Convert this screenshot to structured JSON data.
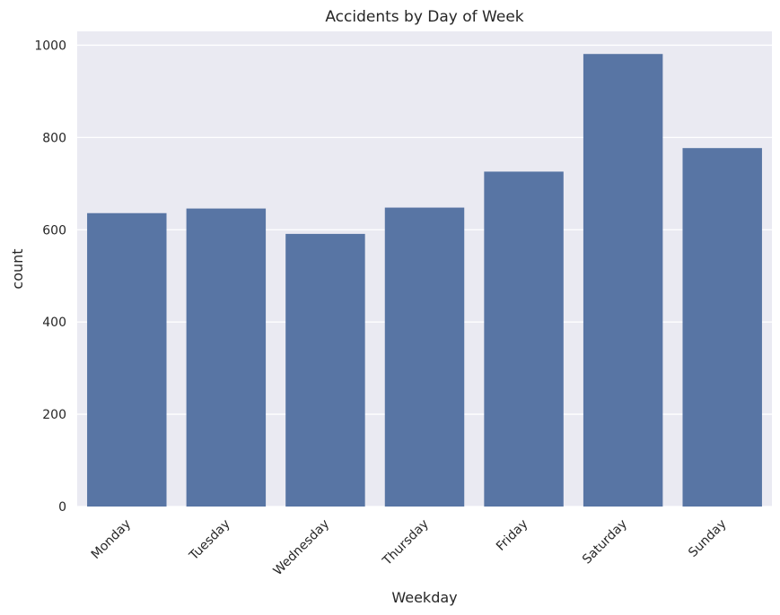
{
  "chart_data": {
    "type": "bar",
    "title": "Accidents by Day of Week",
    "xlabel": "Weekday",
    "ylabel": "count",
    "categories": [
      "Monday",
      "Tuesday",
      "Wednesday",
      "Thursday",
      "Friday",
      "Saturday",
      "Sunday"
    ],
    "values": [
      636,
      646,
      591,
      648,
      726,
      981,
      777
    ],
    "ylim": [
      0,
      1030
    ],
    "yticks": [
      0,
      200,
      400,
      600,
      800,
      1000
    ],
    "grid": true,
    "colors": {
      "bar": "#5875a4",
      "background": "#eaeaf2",
      "grid": "#ffffff"
    }
  }
}
